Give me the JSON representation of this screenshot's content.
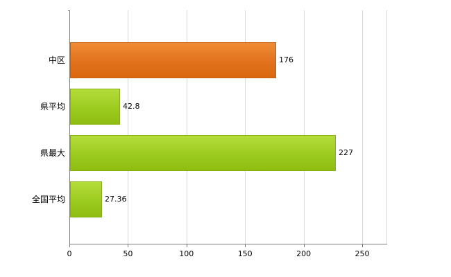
{
  "chart_data": {
    "type": "bar",
    "orientation": "horizontal",
    "title": "",
    "xlabel": "",
    "ylabel": "",
    "categories": [
      "中区",
      "県平均",
      "県最大",
      "全国平均"
    ],
    "values": [
      176,
      42.8,
      227,
      27.36
    ],
    "value_labels": [
      "176",
      "42.8",
      "227",
      "27.36"
    ],
    "series_colors": [
      "orange",
      "green",
      "green",
      "green"
    ],
    "xlim": [
      0,
      250
    ],
    "x_ticks": [
      0,
      50,
      100,
      150,
      200,
      250
    ],
    "x_tick_labels": [
      "0",
      "50",
      "100",
      "150",
      "200",
      "250"
    ],
    "grid": true,
    "legend": "none"
  },
  "colors": {
    "orange_bar": "#e2711d",
    "green_bar": "#9ccb1f",
    "gridline": "#d9d9d9",
    "axis": "#7a7a7a",
    "text": "#000000",
    "background": "#ffffff"
  }
}
